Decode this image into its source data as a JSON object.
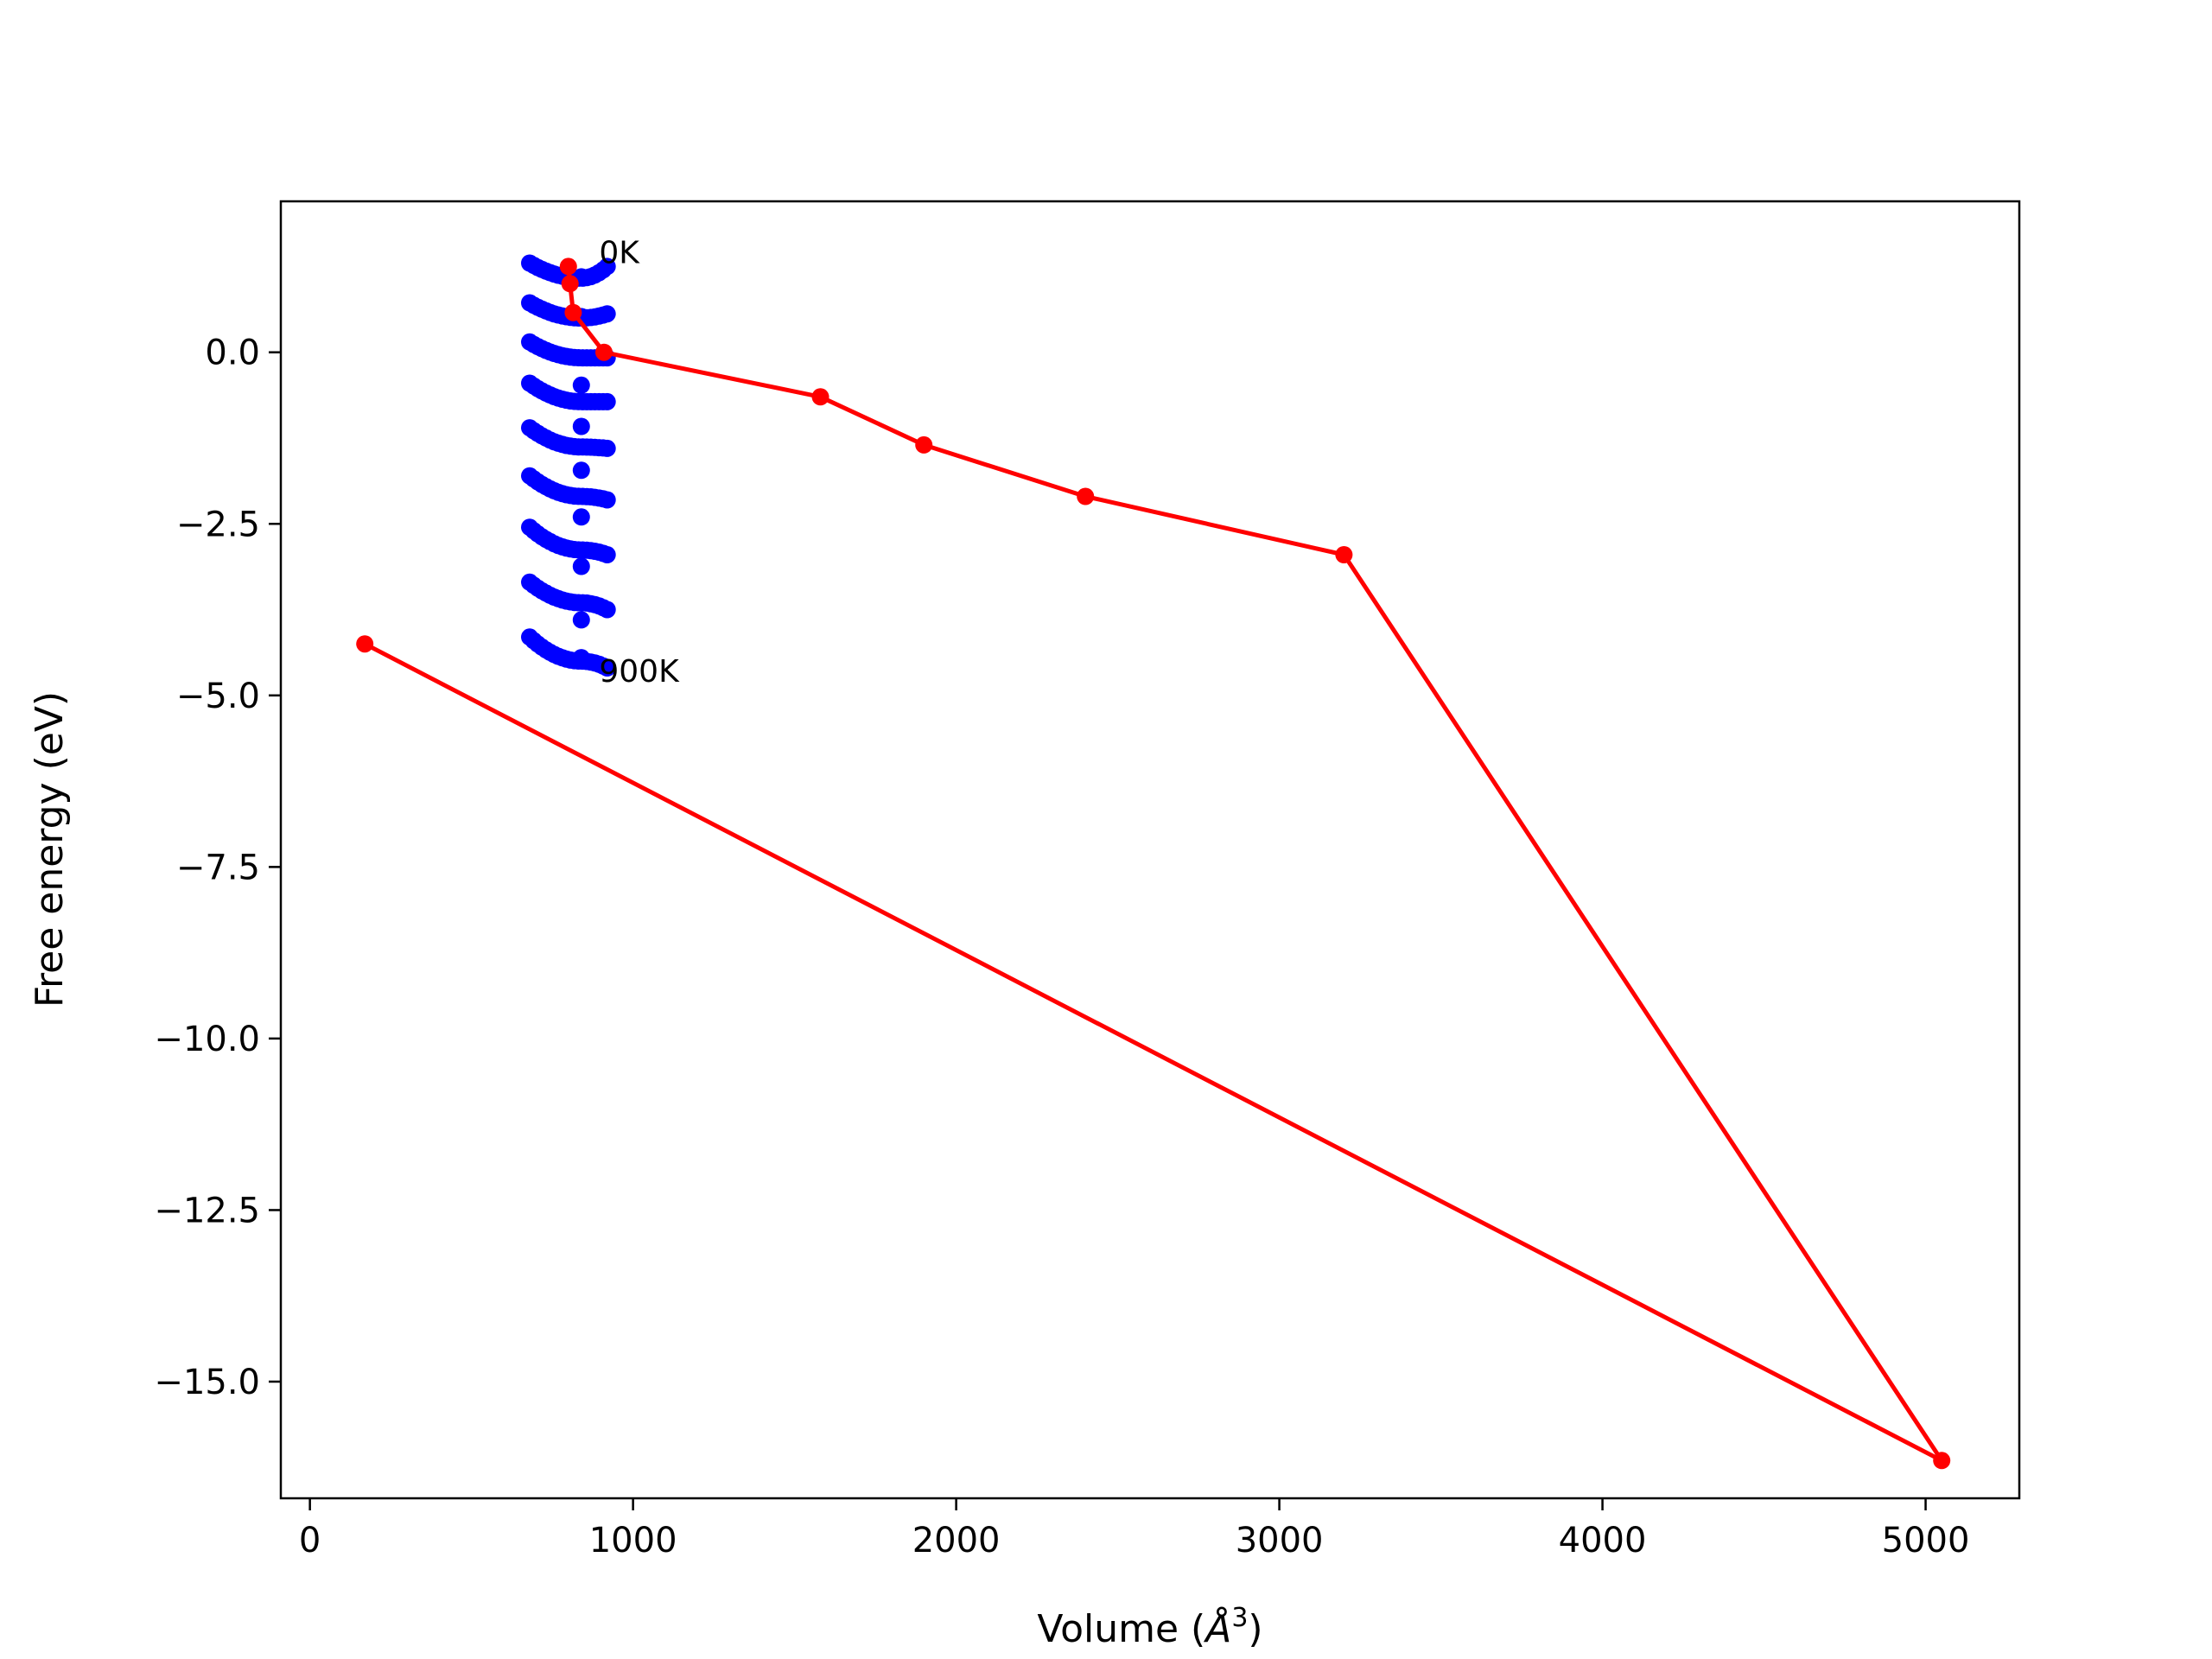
{
  "chart_data": {
    "type": "scatter",
    "title": "",
    "xlabel": "Volume ($\\AA^3$)",
    "xlabel_parts": {
      "main": "Volume (",
      "symbol": "Å",
      "sup": "3",
      "close": ")"
    },
    "ylabel": "Free energy (eV)",
    "xlim": [
      -90,
      5290
    ],
    "ylim": [
      -16.7,
      2.2
    ],
    "xticks": [
      0,
      1000,
      2000,
      3000,
      4000,
      5000
    ],
    "xtick_labels": [
      "0",
      "1000",
      "2000",
      "3000",
      "4000",
      "5000"
    ],
    "yticks": [
      0.0,
      -2.5,
      -5.0,
      -7.5,
      -10.0,
      -12.5,
      -15.0
    ],
    "ytick_labels": [
      "0.0",
      "−2.5",
      "−5.0",
      "−7.5",
      "−10.0",
      "−12.5",
      "−15.0"
    ],
    "grid": false,
    "annotations": [
      {
        "text": "0K",
        "x": 895,
        "y": 1.45
      },
      {
        "text": "900K",
        "x": 895,
        "y": -4.65
      }
    ],
    "scatter_series": {
      "color": "#0000ff",
      "curves": [
        {
          "y_left": 1.3,
          "y_min": 1.08,
          "y_right": 1.25
        },
        {
          "y_left": 0.72,
          "y_min": 0.5,
          "y_right": 0.56
        },
        {
          "y_left": 0.15,
          "y_min": -0.08,
          "y_right": -0.08
        },
        {
          "y_left": -0.45,
          "y_min": -0.72,
          "y_right": -0.72
        },
        {
          "y_left": -1.1,
          "y_min": -1.38,
          "y_right": -1.4
        },
        {
          "y_left": -1.8,
          "y_min": -2.1,
          "y_right": -2.15
        },
        {
          "y_left": -2.55,
          "y_min": -2.88,
          "y_right": -2.95
        },
        {
          "y_left": -3.35,
          "y_min": -3.65,
          "y_right": -3.75
        },
        {
          "y_left": -4.15,
          "y_min": -4.5,
          "y_right": -4.6
        }
      ],
      "x_start": 680,
      "x_end": 920,
      "x_min": 840,
      "points_per_curve": 20
    },
    "line_series": {
      "color": "#ff0000",
      "x": [
        800,
        805,
        815,
        910,
        1580,
        1900,
        2400,
        3200,
        5050,
        170
      ],
      "y": [
        1.25,
        1.0,
        0.58,
        0.0,
        -0.65,
        -1.35,
        -2.1,
        -2.95,
        -16.15,
        -4.25
      ]
    },
    "min_points": {
      "color": "#0000ff",
      "x": [
        840,
        840,
        840,
        840,
        840,
        840,
        840,
        840,
        840
      ],
      "y": [
        1.1,
        0.52,
        -0.48,
        -1.08,
        -1.72,
        -2.4,
        -3.12,
        -3.9,
        -4.45
      ]
    }
  }
}
